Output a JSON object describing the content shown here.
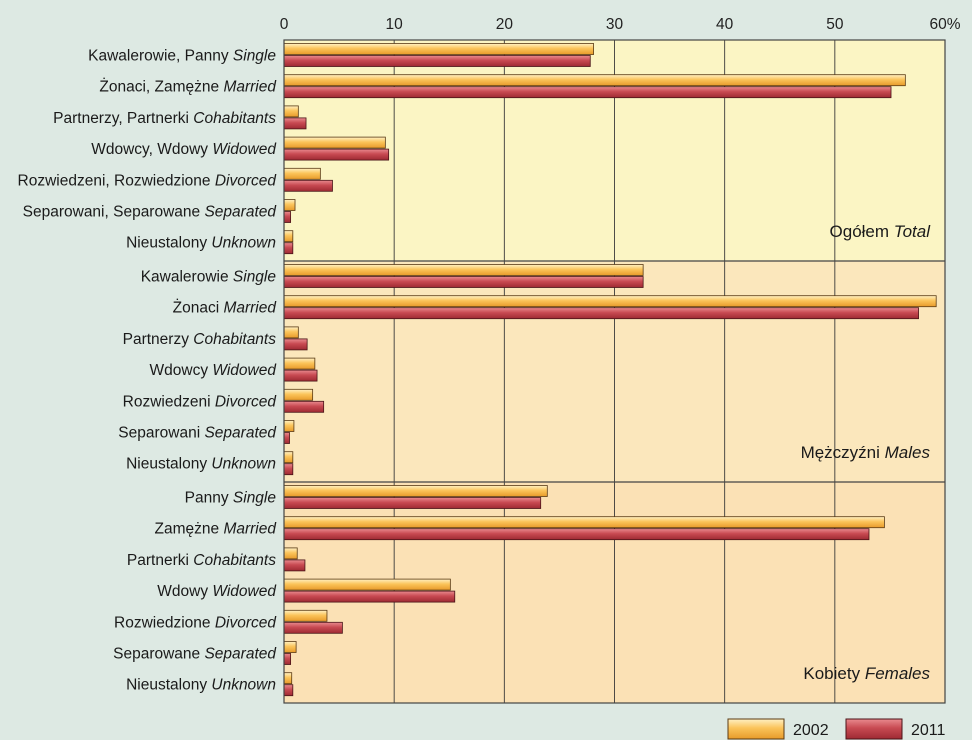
{
  "chart_data": {
    "type": "bar",
    "orientation": "horizontal",
    "axis": {
      "min": 0,
      "max": 60,
      "ticks": [
        "0",
        "10",
        "20",
        "30",
        "40",
        "50",
        "60%"
      ],
      "tick_values": [
        0,
        10,
        20,
        30,
        40,
        50,
        60
      ],
      "position": "top"
    },
    "grid": true,
    "legend": {
      "placement": "bottom-right"
    },
    "series": [
      {
        "name": "2002",
        "color": "#f5b23c"
      },
      {
        "name": "2011",
        "color": "#c7404a"
      }
    ],
    "panels": [
      {
        "title_pl": "Ogółem",
        "title_en": "Total",
        "background": "#fbf5c4",
        "categories": [
          {
            "pl": "Kawalerowie, Panny",
            "en": "Single",
            "v2002": 28.1,
            "v2011": 27.8
          },
          {
            "pl": "Żonaci, Zamężne",
            "en": "Married",
            "v2002": 56.4,
            "v2011": 55.1
          },
          {
            "pl": "Partnerzy, Partnerki",
            "en": "Cohabitants",
            "v2002": 1.3,
            "v2011": 2.0
          },
          {
            "pl": "Wdowcy, Wdowy",
            "en": "Widowed",
            "v2002": 9.2,
            "v2011": 9.5
          },
          {
            "pl": "Rozwiedzeni, Rozwiedzione",
            "en": "Divorced",
            "v2002": 3.3,
            "v2011": 4.4
          },
          {
            "pl": "Separowani, Separowane",
            "en": "Separated",
            "v2002": 1.0,
            "v2011": 0.6
          },
          {
            "pl": "Nieustalony",
            "en": "Unknown",
            "v2002": 0.8,
            "v2011": 0.8
          }
        ]
      },
      {
        "title_pl": "Mężczyźni",
        "title_en": "Males",
        "background": "#fbe7bc",
        "categories": [
          {
            "pl": "Kawalerowie",
            "en": "Single",
            "v2002": 32.6,
            "v2011": 32.6
          },
          {
            "pl": "Żonaci",
            "en": "Married",
            "v2002": 59.2,
            "v2011": 57.6
          },
          {
            "pl": "Partnerzy",
            "en": "Cohabitants",
            "v2002": 1.3,
            "v2011": 2.1
          },
          {
            "pl": "Wdowcy",
            "en": "Widowed",
            "v2002": 2.8,
            "v2011": 3.0
          },
          {
            "pl": "Rozwiedzeni",
            "en": "Divorced",
            "v2002": 2.6,
            "v2011": 3.6
          },
          {
            "pl": "Separowani",
            "en": "Separated",
            "v2002": 0.9,
            "v2011": 0.5
          },
          {
            "pl": "Nieustalony",
            "en": "Unknown",
            "v2002": 0.8,
            "v2011": 0.8
          }
        ]
      },
      {
        "title_pl": "Kobiety",
        "title_en": "Females",
        "background": "#fbe1b5",
        "categories": [
          {
            "pl": "Panny",
            "en": "Single",
            "v2002": 23.9,
            "v2011": 23.3
          },
          {
            "pl": "Zamężne",
            "en": "Married",
            "v2002": 54.5,
            "v2011": 53.1
          },
          {
            "pl": "Partnerki",
            "en": "Cohabitants",
            "v2002": 1.2,
            "v2011": 1.9
          },
          {
            "pl": "Wdowy",
            "en": "Widowed",
            "v2002": 15.1,
            "v2011": 15.5
          },
          {
            "pl": "Rozwiedzione",
            "en": "Divorced",
            "v2002": 3.9,
            "v2011": 5.3
          },
          {
            "pl": "Separowane",
            "en": "Separated",
            "v2002": 1.1,
            "v2011": 0.6
          },
          {
            "pl": "Nieustalony",
            "en": "Unknown",
            "v2002": 0.7,
            "v2011": 0.8
          }
        ]
      }
    ]
  }
}
